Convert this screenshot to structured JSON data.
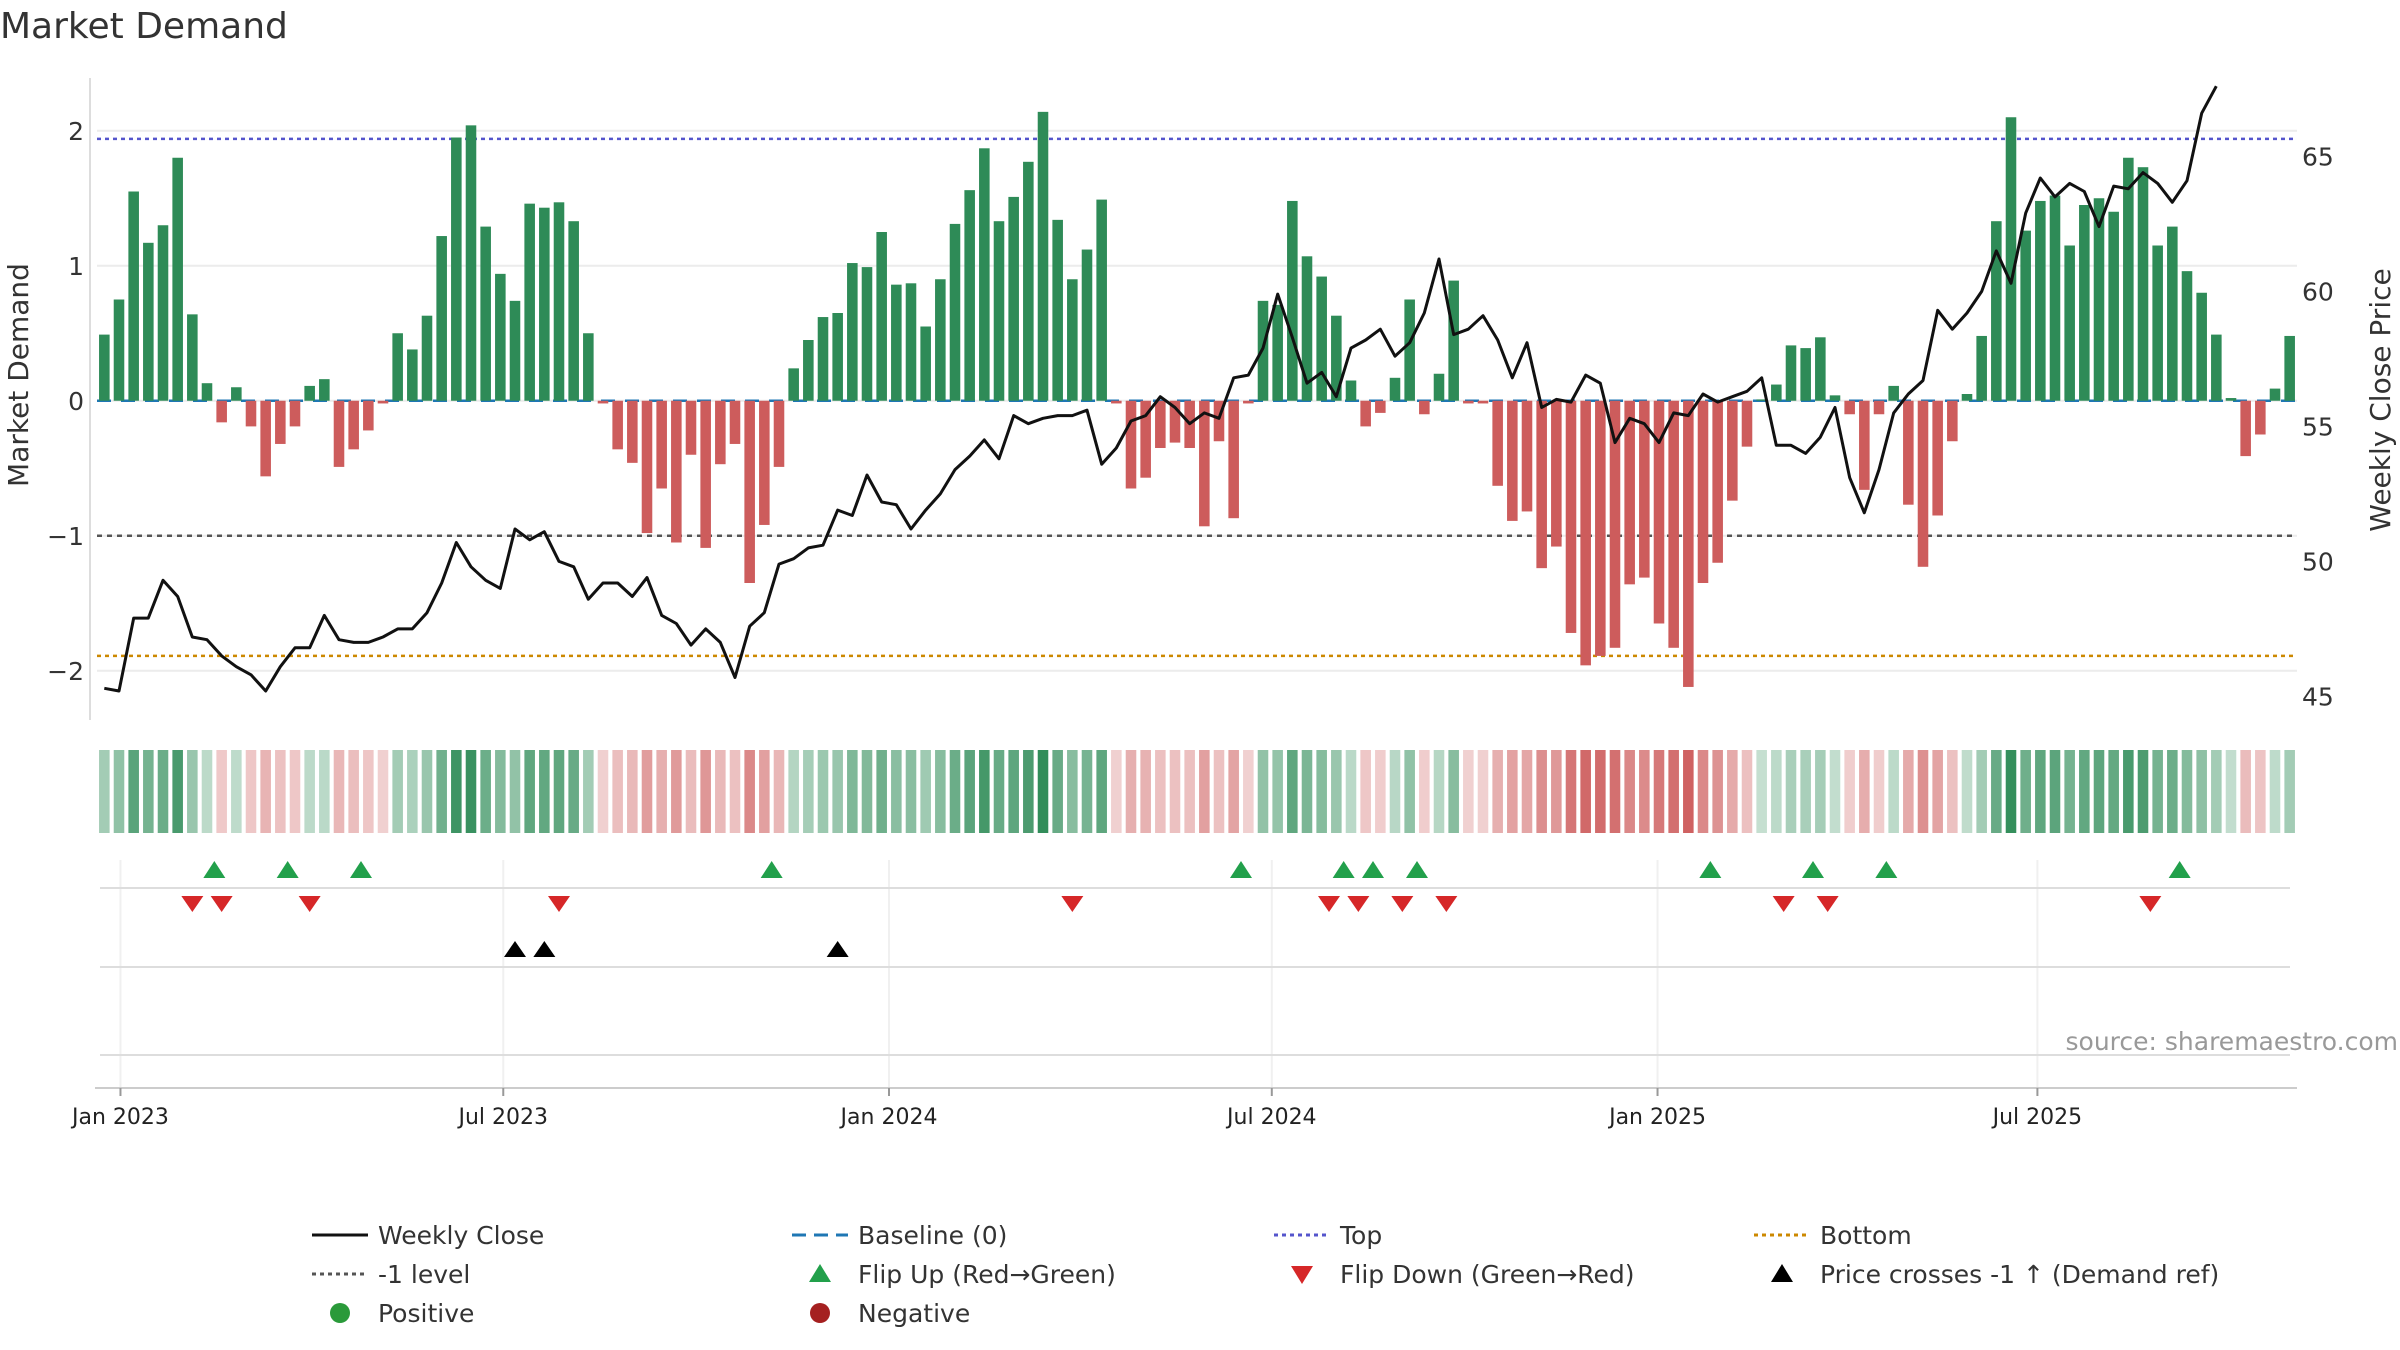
{
  "title": "Market Demand",
  "source": "source: sharemaestro.com",
  "colors": {
    "positive_bar": "#2e8b57",
    "negative_bar": "#cd5c5c",
    "line": "#111111",
    "baseline": "#1f77b4",
    "top": "#5555cc",
    "minus_one": "#555555",
    "bottom": "#cc8800",
    "flip_up": "#22a04b",
    "flip_down": "#d62728",
    "cross": "#000000",
    "legend_positive": "#2a9a3a",
    "legend_negative": "#a52020"
  },
  "chart_data": {
    "type": "bar+line",
    "title": "Market Demand",
    "ylabel": "Market Demand",
    "y2label": "Weekly Close Price",
    "ylim": [
      -2.35,
      2.45
    ],
    "y2lim": [
      44.2,
      68.2
    ],
    "yticks": [
      2,
      1,
      0,
      -1,
      -2
    ],
    "yticklabels": [
      "2",
      "1",
      "0",
      "−1",
      "−2"
    ],
    "y2ticks": [
      65,
      60,
      55,
      50,
      45
    ],
    "y2ticklabels": [
      "65",
      "60",
      "55",
      "50",
      "45"
    ],
    "x_tick_labels": [
      "Jan 2023",
      "Jul 2023",
      "Jan 2024",
      "Jul 2024",
      "Jan 2025",
      "Jul 2025"
    ],
    "x_tick_weeks": [
      1.6,
      27.7,
      54.0,
      80.1,
      106.4,
      132.3
    ],
    "top_level": 1.94,
    "bottom_level": -1.89,
    "minus_one_level": -1.0,
    "demand": [
      0.49,
      0.75,
      1.55,
      1.17,
      1.3,
      1.8,
      0.64,
      0.13,
      -0.16,
      0.1,
      -0.19,
      -0.56,
      -0.32,
      -0.19,
      0.11,
      0.16,
      -0.49,
      -0.36,
      -0.22,
      -0.02,
      0.5,
      0.38,
      0.63,
      1.22,
      1.95,
      2.04,
      1.29,
      0.94,
      0.74,
      1.46,
      1.43,
      1.47,
      1.33,
      0.5,
      -0.02,
      -0.36,
      -0.46,
      -0.98,
      -0.65,
      -1.05,
      -0.4,
      -1.09,
      -0.47,
      -0.32,
      -1.35,
      -0.92,
      -0.49,
      0.24,
      0.45,
      0.62,
      0.65,
      1.02,
      0.99,
      1.25,
      0.86,
      0.87,
      0.55,
      0.9,
      1.31,
      1.56,
      1.87,
      1.33,
      1.51,
      1.77,
      2.14,
      1.34,
      0.9,
      1.12,
      1.49,
      -0.02,
      -0.65,
      -0.57,
      -0.35,
      -0.31,
      -0.35,
      -0.93,
      -0.3,
      -0.87,
      -0.02,
      0.74,
      0.71,
      1.48,
      1.07,
      0.92,
      0.63,
      0.15,
      -0.19,
      -0.09,
      0.17,
      0.75,
      -0.1,
      0.2,
      0.89,
      -0.02,
      -0.02,
      -0.63,
      -0.89,
      -0.82,
      -1.24,
      -1.08,
      -1.72,
      -1.96,
      -1.89,
      -1.83,
      -1.36,
      -1.31,
      -1.65,
      -1.83,
      -2.12,
      -1.35,
      -1.2,
      -0.74,
      -0.34,
      0.01,
      0.12,
      0.41,
      0.39,
      0.47,
      0.04,
      -0.1,
      -0.66,
      -0.1,
      0.11,
      -0.77,
      -1.23,
      -0.85,
      -0.3,
      0.05,
      0.48,
      1.33,
      2.1,
      1.26,
      1.48,
      1.52,
      1.15,
      1.45,
      1.5,
      1.4,
      1.8,
      1.73,
      1.15,
      1.29,
      0.96,
      0.8,
      0.49,
      0.02,
      -0.41,
      -0.25,
      0.09,
      0.48
    ],
    "weekly_close": [
      45.3,
      45.2,
      47.9,
      47.9,
      49.3,
      48.7,
      47.2,
      47.1,
      46.5,
      46.1,
      45.8,
      45.2,
      46.1,
      46.8,
      46.8,
      48.0,
      47.1,
      47.0,
      47.0,
      47.2,
      47.5,
      47.5,
      48.1,
      49.2,
      50.7,
      49.8,
      49.3,
      49.0,
      51.2,
      50.8,
      51.1,
      50.0,
      49.8,
      48.6,
      49.2,
      49.2,
      48.7,
      49.4,
      48.0,
      47.7,
      46.9,
      47.5,
      47.0,
      45.7,
      47.6,
      48.1,
      49.9,
      50.1,
      50.5,
      50.6,
      51.9,
      51.7,
      53.2,
      52.2,
      52.1,
      51.2,
      51.9,
      52.5,
      53.4,
      53.9,
      54.5,
      53.8,
      55.4,
      55.1,
      55.3,
      55.4,
      55.4,
      55.6,
      53.6,
      54.2,
      55.2,
      55.4,
      56.1,
      55.7,
      55.1,
      55.5,
      55.3,
      56.8,
      56.9,
      57.9,
      59.9,
      58.3,
      56.6,
      57.0,
      56.1,
      57.9,
      58.2,
      58.6,
      57.6,
      58.1,
      59.2,
      61.2,
      58.4,
      58.6,
      59.1,
      58.2,
      56.8,
      58.1,
      55.7,
      56.0,
      55.9,
      56.9,
      56.6,
      54.4,
      55.3,
      55.1,
      54.4,
      55.5,
      55.4,
      56.2,
      55.9,
      56.1,
      56.3,
      56.8,
      54.3,
      54.3,
      54.0,
      54.6,
      55.7,
      53.1,
      51.8,
      53.4,
      55.5,
      56.2,
      56.7,
      59.3,
      58.6,
      59.2,
      60.0,
      61.5,
      60.3,
      62.9,
      64.2,
      63.5,
      64.0,
      63.7,
      62.4,
      63.9,
      63.8,
      64.4,
      64.0,
      63.3,
      64.1,
      66.6,
      67.6
    ],
    "flip_up_weeks": [
      8,
      13,
      18,
      46,
      78,
      85,
      87,
      90,
      110,
      117,
      122,
      142
    ],
    "flip_down_weeks": [
      6.5,
      8.5,
      14.5,
      31.5,
      66.5,
      84,
      86,
      89,
      92,
      115,
      118,
      140
    ],
    "price_cross_weeks": [
      28.5,
      30.5,
      50.5
    ],
    "heat_strip": "demand colored per week (green positive, red negative)"
  },
  "legend": [
    {
      "label": "Weekly Close",
      "symbol": "line-solid"
    },
    {
      "label": "Baseline (0)",
      "symbol": "line-dash"
    },
    {
      "label": "Top",
      "symbol": "line-dot-blue"
    },
    {
      "label": "Bottom",
      "symbol": "line-dot-orange"
    },
    {
      "label": "-1 level",
      "symbol": "line-dot-grey"
    },
    {
      "label": "Flip Up (Red→Green)",
      "symbol": "triangle-up"
    },
    {
      "label": "Flip Down (Green→Red)",
      "symbol": "triangle-down"
    },
    {
      "label": "Price crosses -1 ↑ (Demand ref)",
      "symbol": "triangle-up-black"
    },
    {
      "label": "Positive",
      "symbol": "dot-green"
    },
    {
      "label": "Negative",
      "symbol": "dot-red"
    }
  ]
}
